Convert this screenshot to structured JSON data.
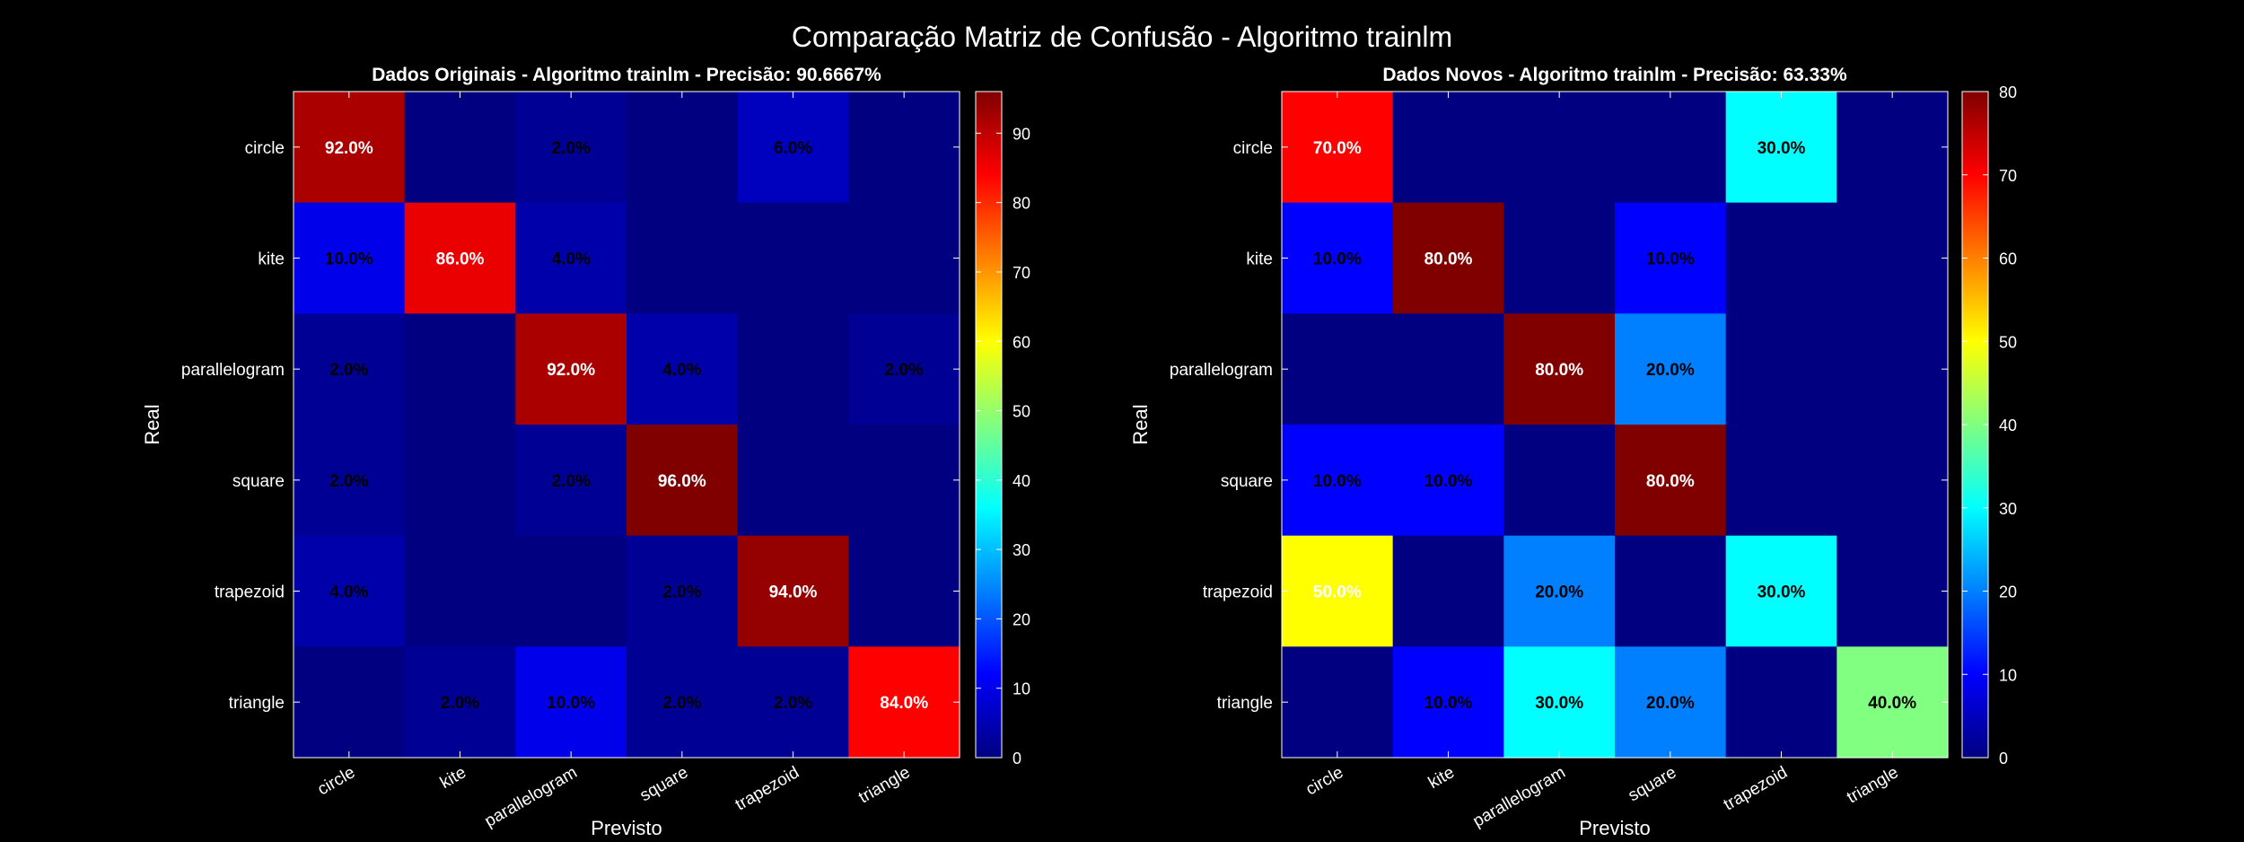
{
  "figure": {
    "suptitle": "Comparação Matriz de Confusão - Algoritmo trainlm",
    "background": "#000000",
    "foreground": "#ffffff",
    "colormap": "jet"
  },
  "chart_data": [
    {
      "type": "heatmap",
      "title": "Dados Originais - Algoritmo trainlm - Precisão: 90.6667%",
      "xlabel": "Previsto",
      "ylabel": "Real",
      "x_categories": [
        "circle",
        "kite",
        "parallelogram",
        "square",
        "trapezoid",
        "triangle"
      ],
      "y_categories": [
        "circle",
        "kite",
        "parallelogram",
        "square",
        "trapezoid",
        "triangle"
      ],
      "values": [
        [
          92,
          0,
          2,
          0,
          6,
          0
        ],
        [
          10,
          86,
          4,
          0,
          0,
          0
        ],
        [
          2,
          0,
          92,
          4,
          0,
          2
        ],
        [
          2,
          0,
          2,
          96,
          0,
          0
        ],
        [
          4,
          0,
          0,
          2,
          94,
          0
        ],
        [
          0,
          2,
          10,
          2,
          2,
          84
        ]
      ],
      "cell_labels": [
        [
          "92.0%",
          "",
          "2.0%",
          "",
          "6.0%",
          ""
        ],
        [
          "10.0%",
          "86.0%",
          "4.0%",
          "",
          "",
          ""
        ],
        [
          "2.0%",
          "",
          "92.0%",
          "4.0%",
          "",
          "2.0%"
        ],
        [
          "2.0%",
          "",
          "2.0%",
          "96.0%",
          "",
          ""
        ],
        [
          "4.0%",
          "",
          "",
          "2.0%",
          "94.0%",
          ""
        ],
        [
          "",
          "2.0%",
          "10.0%",
          "2.0%",
          "2.0%",
          "84.0%"
        ]
      ],
      "clim": [
        0,
        96
      ],
      "colorbar_ticks": [
        0,
        10,
        20,
        30,
        40,
        50,
        60,
        70,
        80,
        90
      ],
      "colorbar_tick_labels": [
        "0",
        "10",
        "20",
        "30",
        "40",
        "50",
        "60",
        "70",
        "80",
        "90"
      ]
    },
    {
      "type": "heatmap",
      "title": "Dados Novos - Algoritmo trainlm - Precisão: 63.33%",
      "xlabel": "Previsto",
      "ylabel": "Real",
      "x_categories": [
        "circle",
        "kite",
        "parallelogram",
        "square",
        "trapezoid",
        "triangle"
      ],
      "y_categories": [
        "circle",
        "kite",
        "parallelogram",
        "square",
        "trapezoid",
        "triangle"
      ],
      "values": [
        [
          70,
          0,
          0,
          0,
          30,
          0
        ],
        [
          10,
          80,
          0,
          10,
          0,
          0
        ],
        [
          0,
          0,
          80,
          20,
          0,
          0
        ],
        [
          10,
          10,
          0,
          80,
          0,
          0
        ],
        [
          50,
          0,
          20,
          0,
          30,
          0
        ],
        [
          0,
          10,
          30,
          20,
          0,
          40
        ]
      ],
      "cell_labels": [
        [
          "70.0%",
          "",
          "",
          "",
          "30.0%",
          ""
        ],
        [
          "10.0%",
          "80.0%",
          "",
          "10.0%",
          "",
          ""
        ],
        [
          "",
          "",
          "80.0%",
          "20.0%",
          "",
          ""
        ],
        [
          "10.0%",
          "10.0%",
          "",
          "80.0%",
          "",
          ""
        ],
        [
          "50.0%",
          "",
          "20.0%",
          "",
          "30.0%",
          ""
        ],
        [
          "",
          "10.0%",
          "30.0%",
          "20.0%",
          "",
          "40.0%"
        ]
      ],
      "clim": [
        0,
        80
      ],
      "colorbar_ticks": [
        0,
        10,
        20,
        30,
        40,
        50,
        60,
        70,
        80
      ],
      "colorbar_tick_labels": [
        "0",
        "10",
        "20",
        "30",
        "40",
        "50",
        "60",
        "70",
        "80"
      ]
    }
  ]
}
